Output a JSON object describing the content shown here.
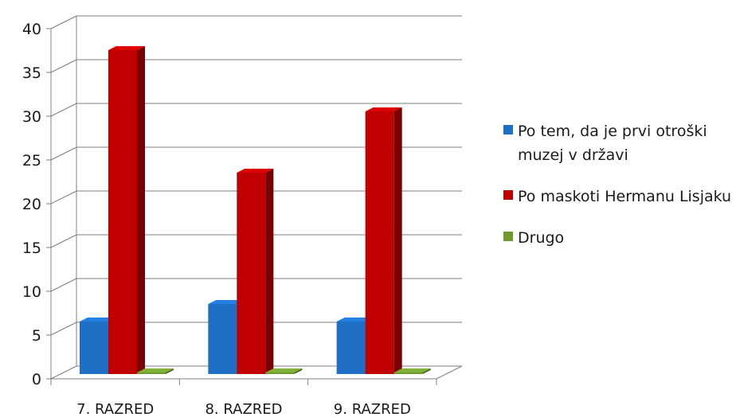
{
  "chart_data": {
    "type": "bar",
    "categories": [
      "7. RAZRED",
      "8. RAZRED",
      "9. RAZRED"
    ],
    "series": [
      {
        "name": "Po tem, da je prvi otroški muzej v državi",
        "values": [
          6,
          8,
          6
        ],
        "color": "#1f6fc5"
      },
      {
        "name": "Po maskoti Hermanu Lisjaku",
        "values": [
          37,
          23,
          30
        ],
        "color": "#c00000"
      },
      {
        "name": "Drugo",
        "values": [
          0,
          0,
          0
        ],
        "color": "#6e9a2e"
      }
    ],
    "ylim": [
      0,
      40
    ],
    "yticks": [
      0,
      5,
      10,
      15,
      20,
      25,
      30,
      35,
      40
    ],
    "grid": true,
    "legend_position": "right",
    "title": "",
    "xlabel": "",
    "ylabel": ""
  }
}
